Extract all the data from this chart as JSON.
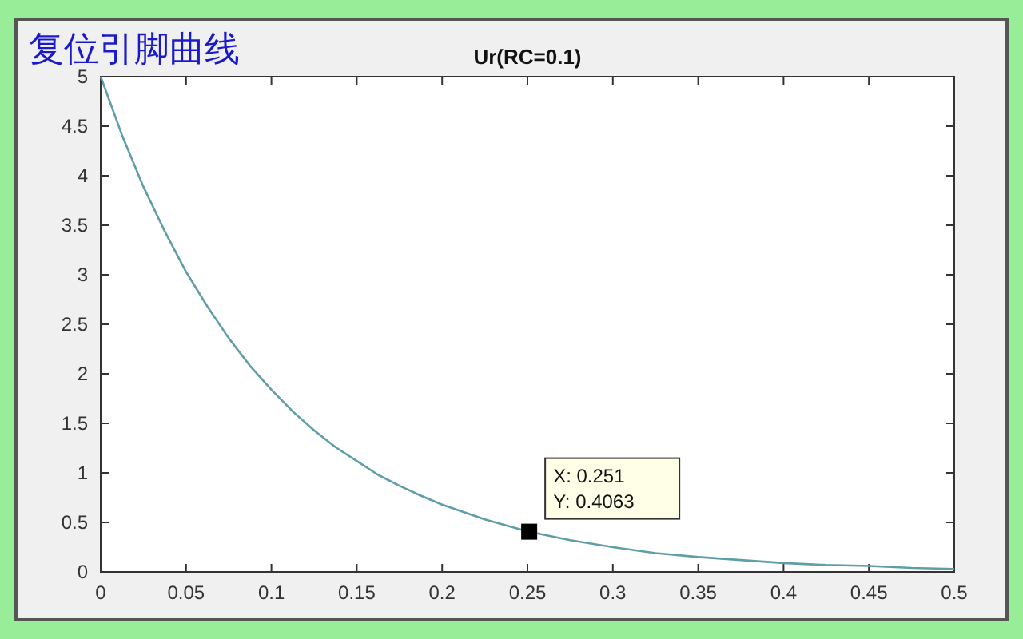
{
  "chart_data": {
    "type": "line",
    "title": "Ur(RC=0.1)",
    "annotations": [
      "复位引脚曲线",
      {
        "text": "X: 0.251\nY: 0.4063",
        "x": 0.251,
        "y": 0.4063
      }
    ],
    "x": [
      0,
      0.0125,
      0.025,
      0.0375,
      0.05,
      0.0625,
      0.075,
      0.0875,
      0.1,
      0.1125,
      0.125,
      0.1375,
      0.15,
      0.1625,
      0.175,
      0.1875,
      0.2,
      0.225,
      0.25,
      0.275,
      0.3,
      0.325,
      0.35,
      0.375,
      0.4,
      0.425,
      0.45,
      0.475,
      0.5
    ],
    "series": [
      {
        "color": "#5f9ea8",
        "values": [
          5,
          4.41,
          3.89,
          3.44,
          3.03,
          2.68,
          2.36,
          2.08,
          1.84,
          1.62,
          1.43,
          1.26,
          1.12,
          0.98,
          0.87,
          0.77,
          0.68,
          0.53,
          0.41,
          0.32,
          0.25,
          0.19,
          0.15,
          0.12,
          0.09,
          0.07,
          0.06,
          0.04,
          0.03
        ]
      }
    ],
    "xlim": [
      0,
      0.5
    ],
    "ylim": [
      0,
      5
    ],
    "xticks": [
      0,
      0.05,
      0.1,
      0.15,
      0.2,
      0.25,
      0.3,
      0.35,
      0.4,
      0.45,
      0.5
    ],
    "yticks": [
      0,
      0.5,
      1,
      1.5,
      2,
      2.5,
      3,
      3.5,
      4,
      4.5,
      5
    ]
  }
}
